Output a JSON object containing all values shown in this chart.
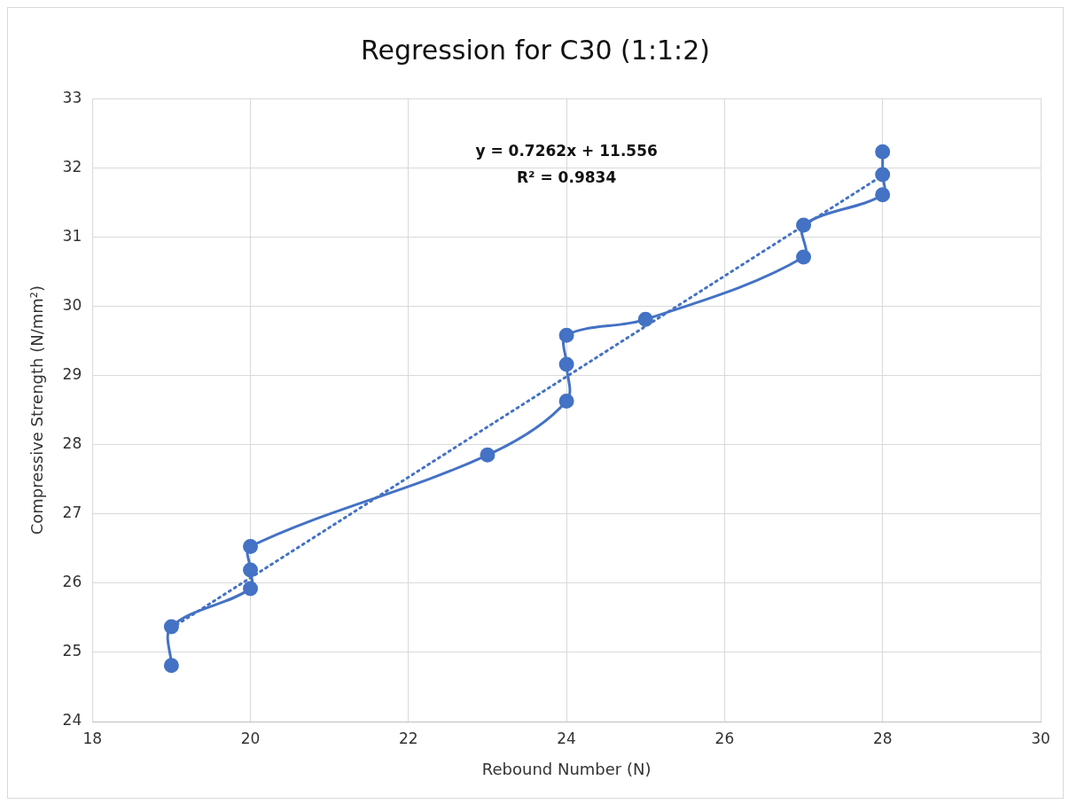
{
  "chart_data": {
    "type": "line",
    "title": "Regression for C30 (1:1:2)",
    "xlabel": "Rebound Number (N)",
    "ylabel": "Compressive Strength (N/mm²)",
    "xlim": [
      18,
      30
    ],
    "xticks": [
      18,
      20,
      22,
      24,
      26,
      28,
      30
    ],
    "ylim": [
      24,
      33
    ],
    "yticks": [
      24,
      25,
      26,
      27,
      28,
      29,
      30,
      31,
      32,
      33
    ],
    "grid": true,
    "legend": false,
    "marker": "circle",
    "series": [
      {
        "color": "#4472c4",
        "line_style": "solid",
        "x": [
          19,
          19,
          20,
          20,
          20,
          23,
          24,
          24,
          24,
          25,
          27,
          27,
          28,
          28,
          28
        ],
        "values": [
          24.81,
          25.37,
          25.92,
          26.19,
          26.53,
          27.85,
          28.63,
          29.16,
          29.58,
          29.81,
          30.71,
          31.17,
          31.61,
          31.9,
          32.23
        ]
      },
      {
        "color": "#4472c4",
        "marker": "none",
        "line_style": "dotted",
        "x": [
          19,
          28
        ],
        "values": [
          25.35,
          31.89
        ]
      }
    ],
    "annotations": [
      "y = 0.7262x + 11.556",
      "R² = 0.9834"
    ]
  }
}
